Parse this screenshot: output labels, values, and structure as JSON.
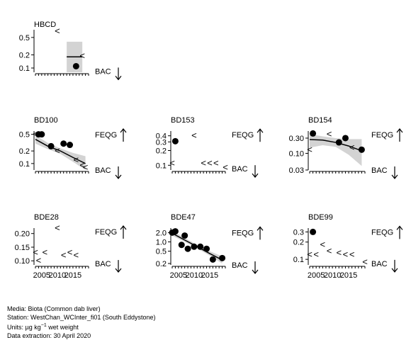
{
  "footer": {
    "media_label": "Media:",
    "media_value": "Biota (Common dab liver)",
    "station_label": "Station:",
    "station_value": "WestChan_WCInter_fi01 (South Eddystone)",
    "units_label": "Units:",
    "units_mu": "µg kg",
    "units_exp": "−1",
    "units_rest": "wet weight",
    "extraction_label": "Data extraction:",
    "extraction_value": "30 April 2020"
  },
  "chart_data": [
    {
      "type": "scatter",
      "title": "HBCD",
      "xlim": [
        2003,
        2020
      ],
      "ylim": [
        0.08,
        0.75
      ],
      "log_y": true,
      "yticks": [
        0.1,
        0.2,
        0.5
      ],
      "ytick_labels": [
        "0.1",
        "0.2",
        "0.5"
      ],
      "xticks": [],
      "xtick_labels": [],
      "points": [
        {
          "x": 2016,
          "y": 0.11
        }
      ],
      "less_than": [
        {
          "x": 2010,
          "y": 0.7
        },
        {
          "x": 2018,
          "y": 0.19
        }
      ],
      "trend": [
        {
          "x": 2013,
          "y": 0.18
        },
        {
          "x": 2018,
          "y": 0.18
        }
      ],
      "band": {
        "x": [
          2013,
          2018
        ],
        "lower": [
          0.08,
          0.08
        ],
        "upper": [
          0.4,
          0.4
        ]
      },
      "thresholds": [
        {
          "label": "BAC",
          "arrow": "down",
          "y": 0.085
        }
      ]
    },
    {
      "type": "scatter",
      "title": "BD100",
      "xlim": [
        2003,
        2020
      ],
      "ylim": [
        0.07,
        0.6
      ],
      "log_y": true,
      "yticks": [
        0.1,
        0.2,
        0.5
      ],
      "ytick_labels": [
        "0.1",
        "0.2",
        "0.5"
      ],
      "xticks": [],
      "xtick_labels": [],
      "points": [
        {
          "x": 2004,
          "y": 0.5
        },
        {
          "x": 2005,
          "y": 0.5
        },
        {
          "x": 2008,
          "y": 0.26
        },
        {
          "x": 2012,
          "y": 0.3
        },
        {
          "x": 2014,
          "y": 0.28
        }
      ],
      "less_than": [
        {
          "x": 2003,
          "y": 0.5
        },
        {
          "x": 2010,
          "y": 0.2
        },
        {
          "x": 2016,
          "y": 0.12
        },
        {
          "x": 2018,
          "y": 0.09
        },
        {
          "x": 2019,
          "y": 0.08
        }
      ],
      "trend": [
        {
          "x": 2003,
          "y": 0.38
        },
        {
          "x": 2007,
          "y": 0.26
        },
        {
          "x": 2011,
          "y": 0.2
        },
        {
          "x": 2015,
          "y": 0.14
        },
        {
          "x": 2019,
          "y": 0.1
        }
      ],
      "band": {
        "x": [
          2003,
          2007,
          2011,
          2015,
          2019
        ],
        "lower": [
          0.3,
          0.22,
          0.17,
          0.11,
          0.07
        ],
        "upper": [
          0.48,
          0.31,
          0.23,
          0.18,
          0.15
        ]
      },
      "thresholds": [
        {
          "label": "FEQG",
          "arrow": "up",
          "y": 0.5
        },
        {
          "label": "BAC",
          "arrow": "down",
          "y": 0.07
        }
      ]
    },
    {
      "type": "scatter",
      "title": "BD153",
      "xlim": [
        2003,
        2020
      ],
      "ylim": [
        0.08,
        0.5
      ],
      "log_y": true,
      "yticks": [
        0.1,
        0.2,
        0.3,
        0.4
      ],
      "ytick_labels": [
        "0.1",
        "0.2",
        "0.3",
        "0.4"
      ],
      "xticks": [],
      "xtick_labels": [],
      "points": [
        {
          "x": 2004,
          "y": 0.31
        }
      ],
      "less_than": [
        {
          "x": 2003,
          "y": 0.11
        },
        {
          "x": 2010,
          "y": 0.4
        },
        {
          "x": 2013,
          "y": 0.11
        },
        {
          "x": 2015,
          "y": 0.11
        },
        {
          "x": 2017,
          "y": 0.11
        },
        {
          "x": 2020,
          "y": 0.09
        }
      ],
      "trend": [],
      "band": null,
      "thresholds": [
        {
          "label": "FEQG",
          "arrow": "up",
          "y": 0.42
        },
        {
          "label": "BAC",
          "arrow": "down",
          "y": 0.085
        }
      ]
    },
    {
      "type": "scatter",
      "title": "BD154",
      "xlim": [
        2003,
        2020
      ],
      "ylim": [
        0.03,
        0.5
      ],
      "log_y": true,
      "yticks": [
        0.03,
        0.1,
        0.3
      ],
      "ytick_labels": [
        "0.03",
        "0.10",
        "0.30"
      ],
      "xticks": [],
      "xtick_labels": [],
      "points": [
        {
          "x": 2004,
          "y": 0.42
        },
        {
          "x": 2012,
          "y": 0.22
        },
        {
          "x": 2014,
          "y": 0.3
        },
        {
          "x": 2019,
          "y": 0.13
        }
      ],
      "less_than": [
        {
          "x": 2003,
          "y": 0.13
        },
        {
          "x": 2009,
          "y": 0.4
        },
        {
          "x": 2016,
          "y": 0.15
        }
      ],
      "trend": [
        {
          "x": 2003,
          "y": 0.27
        },
        {
          "x": 2007,
          "y": 0.26
        },
        {
          "x": 2011,
          "y": 0.22
        },
        {
          "x": 2015,
          "y": 0.17
        },
        {
          "x": 2019,
          "y": 0.12
        }
      ],
      "band": {
        "x": [
          2003,
          2007,
          2011,
          2015,
          2019
        ],
        "lower": [
          0.15,
          0.18,
          0.16,
          0.09,
          0.04
        ],
        "upper": [
          0.4,
          0.34,
          0.3,
          0.28,
          0.28
        ]
      },
      "thresholds": [
        {
          "label": "FEQG",
          "arrow": "up",
          "y": 0.45
        },
        {
          "label": "BAC",
          "arrow": "down",
          "y": 0.03
        }
      ]
    },
    {
      "type": "scatter",
      "title": "BDE28",
      "xlim": [
        2003,
        2020
      ],
      "ylim": [
        0.085,
        0.22
      ],
      "log_y": false,
      "yticks": [
        0.1,
        0.15,
        0.2
      ],
      "ytick_labels": [
        "0.10",
        "0.15",
        "0.20"
      ],
      "xticks": [
        2005,
        2010,
        2015
      ],
      "xtick_labels": [
        "2005",
        "2010",
        "2015"
      ],
      "points": [],
      "less_than": [
        {
          "x": 2003,
          "y": 0.13
        },
        {
          "x": 2004,
          "y": 0.1
        },
        {
          "x": 2006,
          "y": 0.13
        },
        {
          "x": 2010,
          "y": 0.22
        },
        {
          "x": 2012,
          "y": 0.12
        },
        {
          "x": 2014,
          "y": 0.13
        },
        {
          "x": 2016,
          "y": 0.12
        }
      ],
      "trend": [],
      "band": null,
      "thresholds": [
        {
          "label": "FEQG",
          "arrow": "up",
          "y": 0.21
        },
        {
          "label": "BAC",
          "arrow": "down",
          "y": 0.09
        }
      ]
    },
    {
      "type": "scatter",
      "title": "BDE47",
      "xlim": [
        2003,
        2020
      ],
      "ylim": [
        0.18,
        2.8
      ],
      "log_y": true,
      "yticks": [
        0.2,
        0.5,
        1.0,
        2.0
      ],
      "ytick_labels": [
        "0.2",
        "0.5",
        "1.0",
        "2.0"
      ],
      "xticks": [
        2005,
        2010,
        2015
      ],
      "xtick_labels": [
        "2005",
        "2010",
        "2015"
      ],
      "points": [
        {
          "x": 2003,
          "y": 2.0
        },
        {
          "x": 2004,
          "y": 2.2
        },
        {
          "x": 2006,
          "y": 0.8
        },
        {
          "x": 2007,
          "y": 1.6
        },
        {
          "x": 2008,
          "y": 0.6
        },
        {
          "x": 2010,
          "y": 0.7
        },
        {
          "x": 2012,
          "y": 0.7
        },
        {
          "x": 2014,
          "y": 0.6
        },
        {
          "x": 2016,
          "y": 0.27
        },
        {
          "x": 2019,
          "y": 0.3
        }
      ],
      "less_than": [],
      "trend": [
        {
          "x": 2003,
          "y": 1.9
        },
        {
          "x": 2007,
          "y": 1.15
        },
        {
          "x": 2011,
          "y": 0.7
        },
        {
          "x": 2015,
          "y": 0.42
        },
        {
          "x": 2019,
          "y": 0.26
        }
      ],
      "band": {
        "x": [
          2003,
          2007,
          2011,
          2015,
          2019
        ],
        "lower": [
          1.6,
          1.0,
          0.62,
          0.36,
          0.2
        ],
        "upper": [
          2.3,
          1.35,
          0.8,
          0.5,
          0.34
        ]
      },
      "thresholds": [
        {
          "label": "FEQG",
          "arrow": "up",
          "y": 2.0
        },
        {
          "label": "BAC",
          "arrow": "down",
          "y": 0.18
        }
      ]
    },
    {
      "type": "scatter",
      "title": "BDE99",
      "xlim": [
        2003,
        2020
      ],
      "ylim": [
        0.08,
        0.35
      ],
      "log_y": true,
      "yticks": [
        0.1,
        0.2,
        0.3
      ],
      "ytick_labels": [
        "0.1",
        "0.2",
        "0.3"
      ],
      "xticks": [
        2005,
        2010,
        2015
      ],
      "xtick_labels": [
        "2005",
        "2010",
        "2015"
      ],
      "points": [
        {
          "x": 2004,
          "y": 0.3
        }
      ],
      "less_than": [
        {
          "x": 2003,
          "y": 0.12
        },
        {
          "x": 2005,
          "y": 0.12
        },
        {
          "x": 2007,
          "y": 0.18
        },
        {
          "x": 2009,
          "y": 0.14
        },
        {
          "x": 2012,
          "y": 0.13
        },
        {
          "x": 2014,
          "y": 0.12
        },
        {
          "x": 2016,
          "y": 0.12
        },
        {
          "x": 2020,
          "y": 0.09
        }
      ],
      "trend": [],
      "band": null,
      "thresholds": [
        {
          "label": "FEQG",
          "arrow": "up",
          "y": 0.3
        },
        {
          "label": "BAC",
          "arrow": "down",
          "y": 0.085
        }
      ]
    }
  ]
}
